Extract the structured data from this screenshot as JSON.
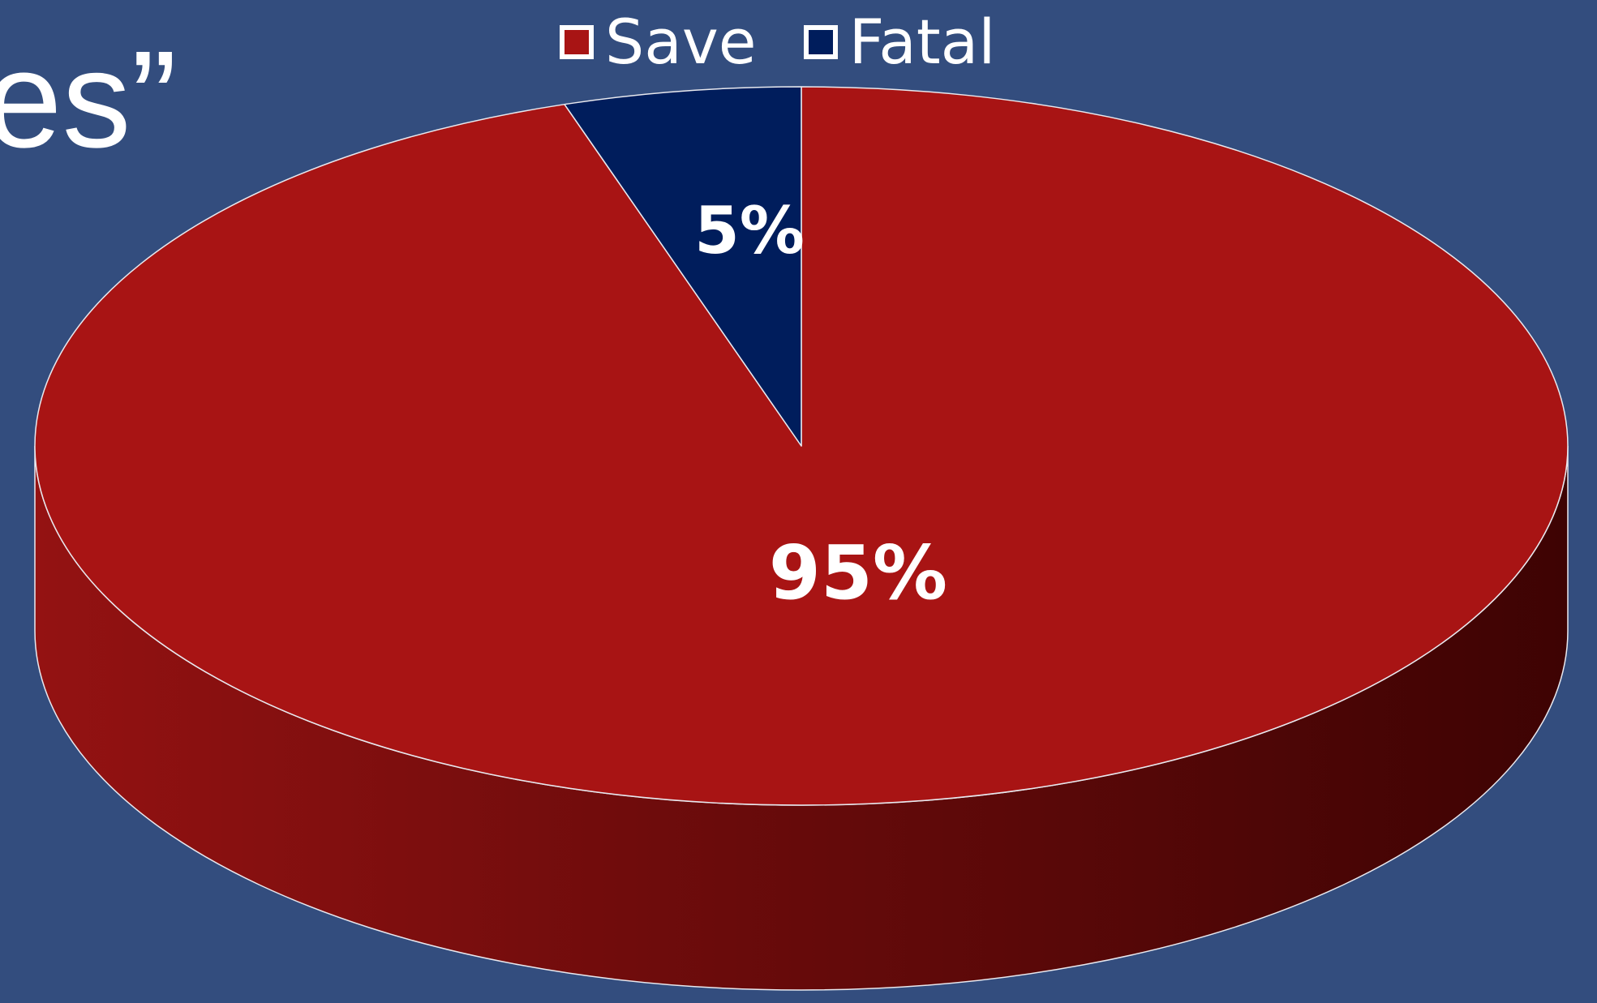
{
  "title_fragment": "es”",
  "chart_data": {
    "type": "pie",
    "style": "3d",
    "categories": [
      "Save",
      "Fatal"
    ],
    "values": [
      95,
      5
    ],
    "data_labels": [
      "95%",
      "5%"
    ],
    "colors": [
      "#a81414",
      "#001d5c"
    ],
    "legend": [
      {
        "label": "Save",
        "color": "#a81414"
      },
      {
        "label": "Fatal",
        "color": "#001d5c"
      }
    ],
    "legend_position": "top"
  }
}
